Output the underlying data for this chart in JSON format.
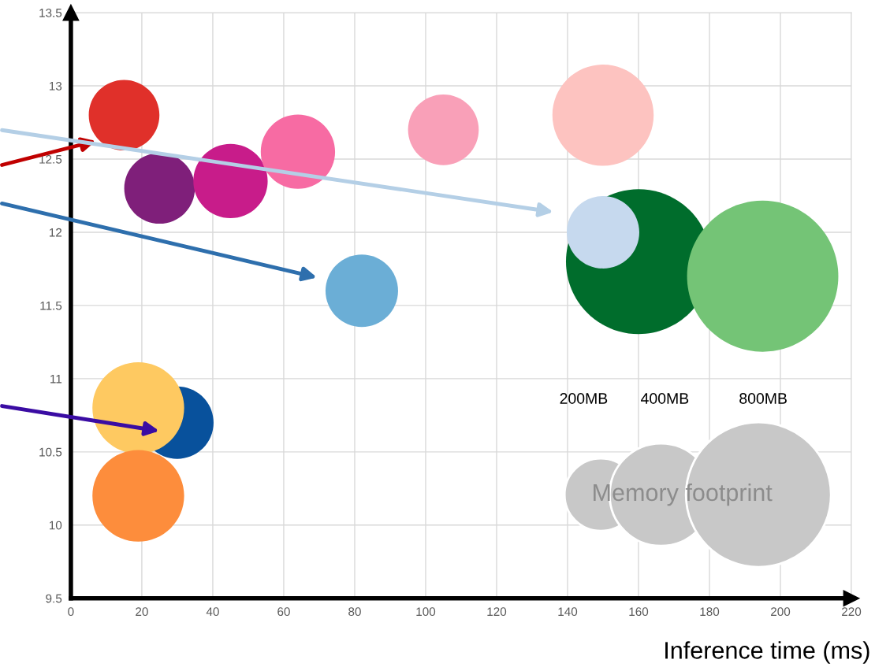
{
  "chart_data": {
    "type": "bubble",
    "xlabel": "Inference time (ms)",
    "legend_title": "Memory footprint",
    "x": [
      15,
      25,
      45,
      64,
      105,
      150,
      160,
      195,
      150,
      82,
      30,
      19,
      19
    ],
    "values": [
      12.8,
      12.3,
      12.35,
      12.55,
      12.7,
      12.8,
      11.8,
      11.7,
      12.0,
      11.6,
      10.7,
      10.8,
      10.2
    ],
    "sizes": [
      190,
      190,
      210,
      210,
      190,
      390,
      800,
      870,
      200,
      200,
      200,
      320,
      320
    ],
    "colors": [
      "#e0302a",
      "#7f1f7a",
      "#c81c8a",
      "#f76ba3",
      "#f9a0b8",
      "#fdc3c0",
      "#006d2c",
      "#74c476",
      "#c6d9ee",
      "#6baed6",
      "#08519c",
      "#fec961",
      "#fd8d3c"
    ],
    "size_legend": [
      {
        "value": 200,
        "label": "200MB"
      },
      {
        "value": 400,
        "label": "400MB"
      },
      {
        "value": 800,
        "label": "800MB"
      }
    ],
    "xlim": [
      0,
      220
    ],
    "ylim": [
      9.5,
      13.5
    ],
    "xticks": [
      0,
      20,
      40,
      60,
      80,
      100,
      120,
      140,
      160,
      180,
      200,
      220
    ],
    "yticks": [
      9.5,
      10,
      10.5,
      11,
      11.5,
      12,
      12.5,
      13,
      13.5
    ],
    "grid": true
  }
}
